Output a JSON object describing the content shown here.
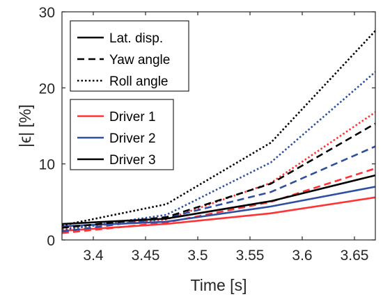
{
  "chart_data": {
    "type": "line",
    "xlabel": "Time [s]",
    "ylabel": "|ϵ| [%]",
    "xlim": [
      3.37,
      3.67
    ],
    "ylim": [
      0,
      30
    ],
    "x_ticks": [
      3.4,
      3.45,
      3.5,
      3.55,
      3.6,
      3.65
    ],
    "x_tick_labels": [
      "3.4",
      "3.45",
      "3.5",
      "3.55",
      "3.6",
      "3.65"
    ],
    "y_ticks": [
      0,
      10,
      20,
      30
    ],
    "y_tick_labels": [
      "0",
      "10",
      "20",
      "30"
    ],
    "grid": false,
    "x": [
      3.37,
      3.47,
      3.57,
      3.67
    ],
    "legend_style": {
      "placement": "top-left",
      "entries": [
        {
          "label": "Lat. disp.",
          "dash": "solid"
        },
        {
          "label": "Yaw angle",
          "dash": "dashed"
        },
        {
          "label": "Roll angle",
          "dash": "dotted"
        }
      ]
    },
    "legend_driver": {
      "placement": "upper-left",
      "entries": [
        {
          "label": "Driver 1",
          "color": "#ff3333"
        },
        {
          "label": "Driver 2",
          "color": "#2e4fa0"
        },
        {
          "label": "Driver 3",
          "color": "#000000"
        }
      ]
    },
    "series": [
      {
        "driver": "Driver 1",
        "quantity": "Lat. disp.",
        "color": "#ff3333",
        "dash": "solid",
        "values": [
          1.2,
          2.1,
          3.5,
          5.6
        ]
      },
      {
        "driver": "Driver 1",
        "quantity": "Yaw angle",
        "color": "#ff3333",
        "dash": "dashed",
        "values": [
          0.9,
          2.3,
          5.0,
          9.4
        ]
      },
      {
        "driver": "Driver 1",
        "quantity": "Roll angle",
        "color": "#ff3333",
        "dash": "dotted",
        "values": [
          1.5,
          2.7,
          7.5,
          16.8
        ]
      },
      {
        "driver": "Driver 2",
        "quantity": "Lat. disp.",
        "color": "#2e4fa0",
        "dash": "solid",
        "values": [
          1.8,
          2.4,
          4.4,
          7.0
        ]
      },
      {
        "driver": "Driver 2",
        "quantity": "Yaw angle",
        "color": "#2e4fa0",
        "dash": "dashed",
        "values": [
          1.1,
          2.9,
          6.3,
          12.3
        ]
      },
      {
        "driver": "Driver 2",
        "quantity": "Roll angle",
        "color": "#2e4fa0",
        "dash": "dotted",
        "values": [
          1.3,
          3.3,
          10.2,
          22.1
        ]
      },
      {
        "driver": "Driver 3",
        "quantity": "Lat. disp.",
        "color": "#000000",
        "dash": "solid",
        "values": [
          2.1,
          2.8,
          5.1,
          8.5
        ]
      },
      {
        "driver": "Driver 3",
        "quantity": "Yaw angle",
        "color": "#000000",
        "dash": "dashed",
        "values": [
          1.6,
          3.0,
          7.4,
          15.3
        ]
      },
      {
        "driver": "Driver 3",
        "quantity": "Roll angle",
        "color": "#000000",
        "dash": "dotted",
        "values": [
          1.9,
          4.7,
          12.8,
          27.5
        ]
      }
    ]
  }
}
